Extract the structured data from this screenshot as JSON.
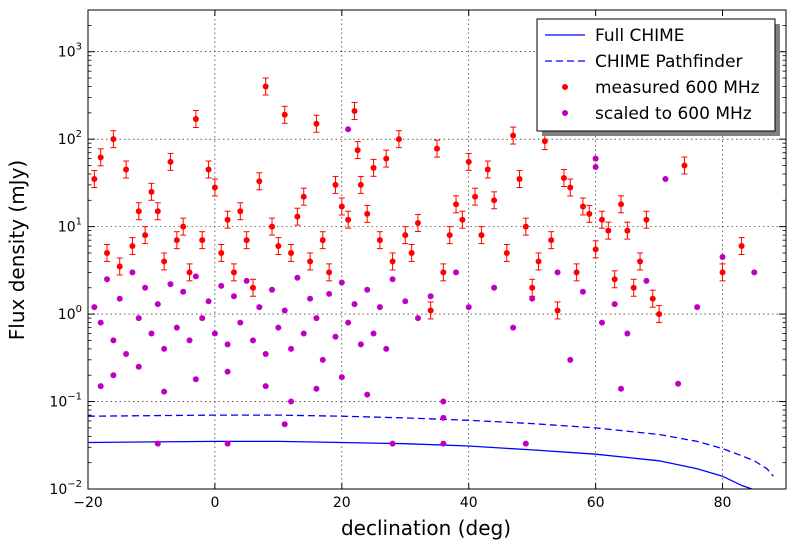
{
  "chart_data": {
    "type": "scatter",
    "xlabel": "declination (deg)",
    "ylabel": "Flux density (mJy)",
    "xlim": [
      -20,
      90
    ],
    "ylim": [
      0.01,
      3000
    ],
    "y_scale": "log",
    "grid": true,
    "legend_placement": "top-right",
    "x_ticks": [
      "−20",
      "0",
      "20",
      "40",
      "60",
      "80"
    ],
    "x_tick_values": [
      -20,
      0,
      20,
      40,
      60,
      80
    ],
    "y_ticks": [
      {
        "value": 0.01,
        "base": "10",
        "exp": "−2"
      },
      {
        "value": 0.1,
        "base": "10",
        "exp": "−1"
      },
      {
        "value": 1,
        "base": "10",
        "exp": "0"
      },
      {
        "value": 10,
        "base": "10",
        "exp": "1"
      },
      {
        "value": 100,
        "base": "10",
        "exp": "2"
      },
      {
        "value": 1000,
        "base": "10",
        "exp": "3"
      }
    ],
    "lines": [
      {
        "name": "Full CHIME",
        "color": "#0000ff",
        "dash": "solid",
        "x": [
          -20,
          0,
          10,
          20,
          30,
          40,
          50,
          60,
          70,
          76,
          80,
          83,
          85
        ],
        "y": [
          0.034,
          0.035,
          0.035,
          0.034,
          0.033,
          0.031,
          0.028,
          0.025,
          0.021,
          0.017,
          0.014,
          0.011,
          0.0098
        ]
      },
      {
        "name": "CHIME Pathfinder",
        "color": "#0000ff",
        "dash": "dashed",
        "x": [
          -20,
          0,
          10,
          20,
          30,
          40,
          50,
          60,
          70,
          76,
          80,
          83,
          85,
          87,
          88
        ],
        "y": [
          0.068,
          0.07,
          0.07,
          0.068,
          0.065,
          0.061,
          0.056,
          0.05,
          0.042,
          0.035,
          0.029,
          0.024,
          0.021,
          0.017,
          0.014
        ]
      }
    ],
    "scatter_series": [
      {
        "name": "measured 600 MHz",
        "color": "#ff0000",
        "points": [
          [
            -19,
            35
          ],
          [
            -18,
            62
          ],
          [
            -17,
            5
          ],
          [
            -16,
            100
          ],
          [
            -15,
            3.5
          ],
          [
            -14,
            45
          ],
          [
            -13,
            6
          ],
          [
            -12,
            15
          ],
          [
            -11,
            8
          ],
          [
            -10,
            25
          ],
          [
            -9,
            15
          ],
          [
            -8,
            4
          ],
          [
            -7,
            55
          ],
          [
            -6,
            7
          ],
          [
            -5,
            10
          ],
          [
            -4,
            3
          ],
          [
            -3,
            170
          ],
          [
            -2,
            7
          ],
          [
            -1,
            45
          ],
          [
            0,
            28
          ],
          [
            1,
            5
          ],
          [
            2,
            12
          ],
          [
            3,
            3
          ],
          [
            4,
            15
          ],
          [
            5,
            7
          ],
          [
            6,
            2
          ],
          [
            7,
            33
          ],
          [
            8,
            400
          ],
          [
            9,
            10
          ],
          [
            10,
            6
          ],
          [
            11,
            190
          ],
          [
            12,
            5
          ],
          [
            13,
            13
          ],
          [
            14,
            22
          ],
          [
            15,
            4
          ],
          [
            16,
            150
          ],
          [
            17,
            7
          ],
          [
            18,
            3
          ],
          [
            19,
            30
          ],
          [
            20,
            17
          ],
          [
            21,
            12
          ],
          [
            22,
            210
          ],
          [
            22.5,
            75
          ],
          [
            23,
            30
          ],
          [
            24,
            14
          ],
          [
            25,
            47
          ],
          [
            26,
            7
          ],
          [
            27,
            60
          ],
          [
            28,
            4
          ],
          [
            29,
            100
          ],
          [
            30,
            8
          ],
          [
            31,
            5
          ],
          [
            32,
            11
          ],
          [
            34,
            1.1
          ],
          [
            35,
            78
          ],
          [
            36,
            3
          ],
          [
            37,
            8
          ],
          [
            38,
            18
          ],
          [
            39,
            12
          ],
          [
            40,
            55
          ],
          [
            41,
            22
          ],
          [
            42,
            8
          ],
          [
            43,
            45
          ],
          [
            44,
            20
          ],
          [
            46,
            5
          ],
          [
            47,
            110
          ],
          [
            48,
            35
          ],
          [
            49,
            10
          ],
          [
            50,
            2
          ],
          [
            51,
            4
          ],
          [
            52,
            95
          ],
          [
            53,
            7
          ],
          [
            54,
            1.1
          ],
          [
            55,
            36
          ],
          [
            56,
            28
          ],
          [
            57,
            3
          ],
          [
            58,
            17
          ],
          [
            59,
            14
          ],
          [
            60,
            5.5
          ],
          [
            61,
            12
          ],
          [
            62,
            9
          ],
          [
            63,
            2.5
          ],
          [
            64,
            18
          ],
          [
            65,
            9
          ],
          [
            66,
            2
          ],
          [
            67,
            4
          ],
          [
            68,
            12
          ],
          [
            69,
            1.5
          ],
          [
            70,
            1
          ],
          [
            74,
            50
          ],
          [
            80,
            3
          ],
          [
            83,
            6
          ]
        ]
      },
      {
        "name": "scaled to 600 MHz",
        "color": "#c000c0",
        "points": [
          [
            -19,
            1.2
          ],
          [
            -18,
            0.8
          ],
          [
            -17,
            2.5
          ],
          [
            -16,
            0.5
          ],
          [
            -15,
            1.5
          ],
          [
            -14,
            0.35
          ],
          [
            -13,
            3
          ],
          [
            -12,
            0.9
          ],
          [
            -11,
            2
          ],
          [
            -10,
            0.6
          ],
          [
            -9,
            1.3
          ],
          [
            -8,
            0.4
          ],
          [
            -7,
            2.2
          ],
          [
            -6,
            0.7
          ],
          [
            -5,
            1.8
          ],
          [
            -4,
            0.5
          ],
          [
            -3,
            2.7
          ],
          [
            -2,
            0.9
          ],
          [
            -1,
            1.4
          ],
          [
            0,
            0.6
          ],
          [
            1,
            2.1
          ],
          [
            2,
            0.45
          ],
          [
            3,
            1.6
          ],
          [
            4,
            0.8
          ],
          [
            5,
            2.4
          ],
          [
            6,
            0.5
          ],
          [
            7,
            1.2
          ],
          [
            8,
            0.35
          ],
          [
            9,
            1.9
          ],
          [
            10,
            0.7
          ],
          [
            11,
            1.1
          ],
          [
            12,
            0.4
          ],
          [
            13,
            2.6
          ],
          [
            14,
            0.6
          ],
          [
            15,
            1.5
          ],
          [
            16,
            0.9
          ],
          [
            17,
            0.3
          ],
          [
            18,
            1.7
          ],
          [
            19,
            0.55
          ],
          [
            20,
            2.3
          ],
          [
            21,
            0.8
          ],
          [
            22,
            1.3
          ],
          [
            23,
            0.45
          ],
          [
            24,
            1.9
          ],
          [
            25,
            0.6
          ],
          [
            26,
            1.2
          ],
          [
            27,
            0.4
          ],
          [
            28,
            2.5
          ],
          [
            30,
            1.4
          ],
          [
            32,
            0.9
          ],
          [
            34,
            1.6
          ],
          [
            36,
            0.1
          ],
          [
            38,
            3
          ],
          [
            40,
            1.2
          ],
          [
            44,
            2
          ],
          [
            47,
            0.7
          ],
          [
            50,
            1.5
          ],
          [
            54,
            3
          ],
          [
            56,
            0.3
          ],
          [
            58,
            1.8
          ],
          [
            60,
            60
          ],
          [
            61,
            0.8
          ],
          [
            63,
            1.3
          ],
          [
            65,
            0.6
          ],
          [
            68,
            2.4
          ],
          [
            71,
            35
          ],
          [
            73,
            0.16
          ],
          [
            76,
            1.2
          ],
          [
            80,
            4.5
          ],
          [
            85,
            3
          ],
          [
            -18,
            0.15
          ],
          [
            -16,
            0.2
          ],
          [
            -12,
            0.25
          ],
          [
            -8,
            0.13
          ],
          [
            -3,
            0.18
          ],
          [
            2,
            0.22
          ],
          [
            8,
            0.15
          ],
          [
            12,
            0.1
          ],
          [
            16,
            0.14
          ],
          [
            20,
            0.19
          ],
          [
            24,
            0.12
          ],
          [
            28,
            0.033
          ],
          [
            36,
            0.033
          ],
          [
            49,
            0.033
          ],
          [
            2,
            0.033
          ],
          [
            -9,
            0.033
          ],
          [
            11,
            0.055
          ],
          [
            21,
            130
          ],
          [
            60,
            48
          ],
          [
            36,
            0.065
          ],
          [
            64,
            0.14
          ]
        ]
      }
    ]
  }
}
